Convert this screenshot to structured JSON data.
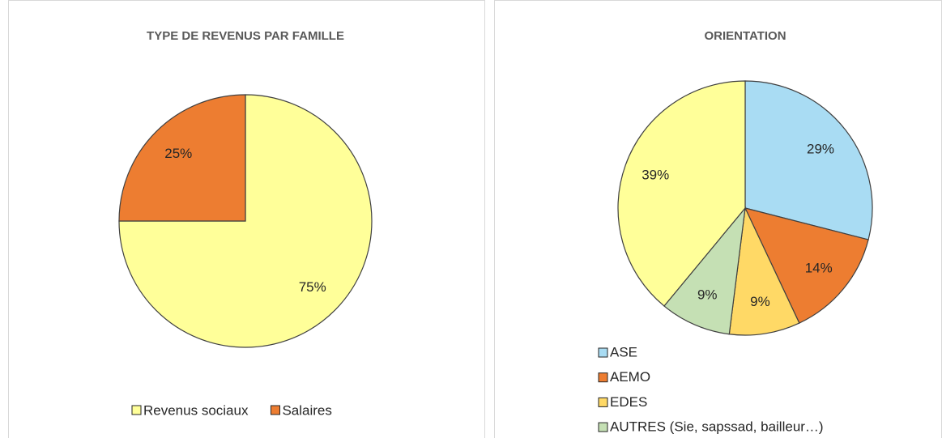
{
  "chart_data": [
    {
      "type": "pie",
      "title": "TYPE DE REVENUS PAR FAMILLE",
      "categories": [
        "Revenus sociaux",
        "Salaires"
      ],
      "values": [
        75,
        25
      ],
      "value_labels": [
        "75%",
        "25%"
      ],
      "colors": [
        "#FFFF99",
        "#ED7D31"
      ],
      "legend": "bottom"
    },
    {
      "type": "pie",
      "title": "ORIENTATION",
      "categories": [
        "ASE",
        "AEMO",
        "EDES",
        "AUTRES (Sie, sapssad, bailleur…)",
        null
      ],
      "values": [
        29,
        14,
        9,
        9,
        39
      ],
      "value_labels": [
        "29%",
        "14%",
        "9%",
        "9%",
        "39%"
      ],
      "colors": [
        "#A9DCF3",
        "#ED7D31",
        "#FFD966",
        "#C5E0B4",
        "#FFFF99"
      ],
      "legend": "left"
    }
  ]
}
